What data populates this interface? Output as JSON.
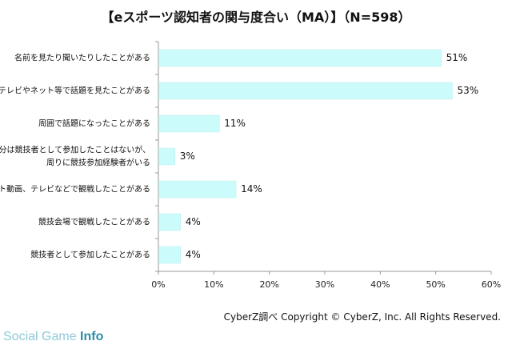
{
  "chart_data": {
    "type": "bar",
    "orientation": "horizontal",
    "title": "【eスポーツ認知者の関与度合い（MA）】（N=598）",
    "categories": [
      [
        "名前を見たり聞いたりしたことがある"
      ],
      [
        "テレビやネット等で話題を見たことがある"
      ],
      [
        "周囲で話題になったことがある"
      ],
      [
        "自分は競技者として参加したことはないが、",
        "周りに競技参加経験者がいる"
      ],
      [
        "ネット動画、テレビなどで観戦したことがある"
      ],
      [
        "競技会場で観戦したことがある"
      ],
      [
        "競技者として参加したことがある"
      ]
    ],
    "values": [
      51,
      53,
      11,
      3,
      14,
      4,
      4
    ],
    "value_labels": [
      "51%",
      "53%",
      "11%",
      "3%",
      "14%",
      "4%",
      "4%"
    ],
    "xlim": [
      0,
      60
    ],
    "xticks": [
      0,
      10,
      20,
      30,
      40,
      50,
      60
    ],
    "xtick_labels": [
      "0%",
      "10%",
      "20%",
      "30%",
      "40%",
      "50%",
      "60%"
    ],
    "grid": false,
    "legend": "none",
    "bar_color": "#ccfbfb",
    "bar_border_color": "#bfeeee",
    "axis_color": "#9a9a9a"
  },
  "source_note": "CyberZ調べ Copyright © CyberZ, Inc. All Rights Reserved.",
  "brand": {
    "part1": "Social Game ",
    "part2": "Info"
  }
}
